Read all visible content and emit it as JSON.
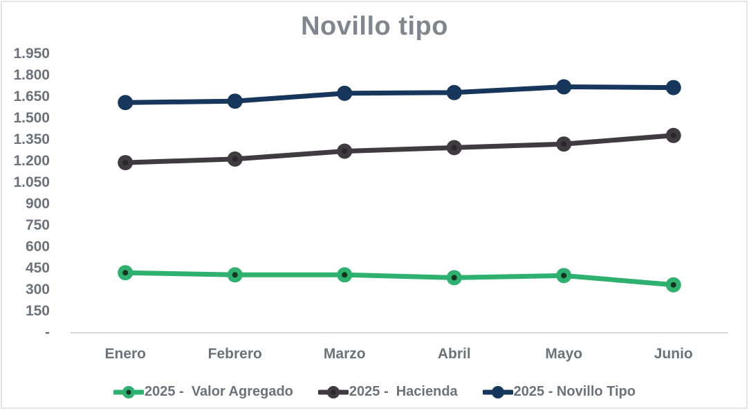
{
  "title": "Novillo tipo",
  "chart_data": {
    "type": "line",
    "title": "Novillo tipo",
    "xlabel": "",
    "ylabel": "",
    "categories": [
      "Enero",
      "Febrero",
      "Marzo",
      "Abril",
      "Mayo",
      "Junio"
    ],
    "series": [
      {
        "name": "2025 -  Valor Agregado",
        "values": [
          420,
          405,
          405,
          385,
          400,
          335
        ],
        "color": "#2eb06f",
        "marker_dot": "#16331f"
      },
      {
        "name": "2025 -  Hacienda",
        "values": [
          1190,
          1215,
          1270,
          1295,
          1320,
          1380
        ],
        "color": "#3f3b40",
        "marker_dot": "#2a272c"
      },
      {
        "name": "2025 - Novillo Tipo",
        "values": [
          1610,
          1620,
          1675,
          1680,
          1720,
          1715
        ],
        "color": "#16365c",
        "marker_dot": null
      }
    ],
    "ylim": [
      0,
      1950
    ],
    "y_tick_step": 150,
    "y_ticks": [
      {
        "value": 1950,
        "label": "1.950"
      },
      {
        "value": 1800,
        "label": "1.800"
      },
      {
        "value": 1650,
        "label": "1.650"
      },
      {
        "value": 1500,
        "label": "1.500"
      },
      {
        "value": 1350,
        "label": "1.350"
      },
      {
        "value": 1200,
        "label": "1.200"
      },
      {
        "value": 1050,
        "label": "1.050"
      },
      {
        "value": 900,
        "label": "900"
      },
      {
        "value": 750,
        "label": "750"
      },
      {
        "value": 600,
        "label": "600"
      },
      {
        "value": 450,
        "label": "450"
      },
      {
        "value": 300,
        "label": "300"
      },
      {
        "value": 150,
        "label": "150"
      },
      {
        "value": 0,
        "label": "-"
      }
    ],
    "grid": false,
    "legend_position": "bottom"
  },
  "colors": {
    "title_text": "#7f868e",
    "axis_text": "#6b727a",
    "axis_line": "#d6d6d6",
    "chart_border": "#e4e4e4",
    "background": "#ffffff"
  }
}
